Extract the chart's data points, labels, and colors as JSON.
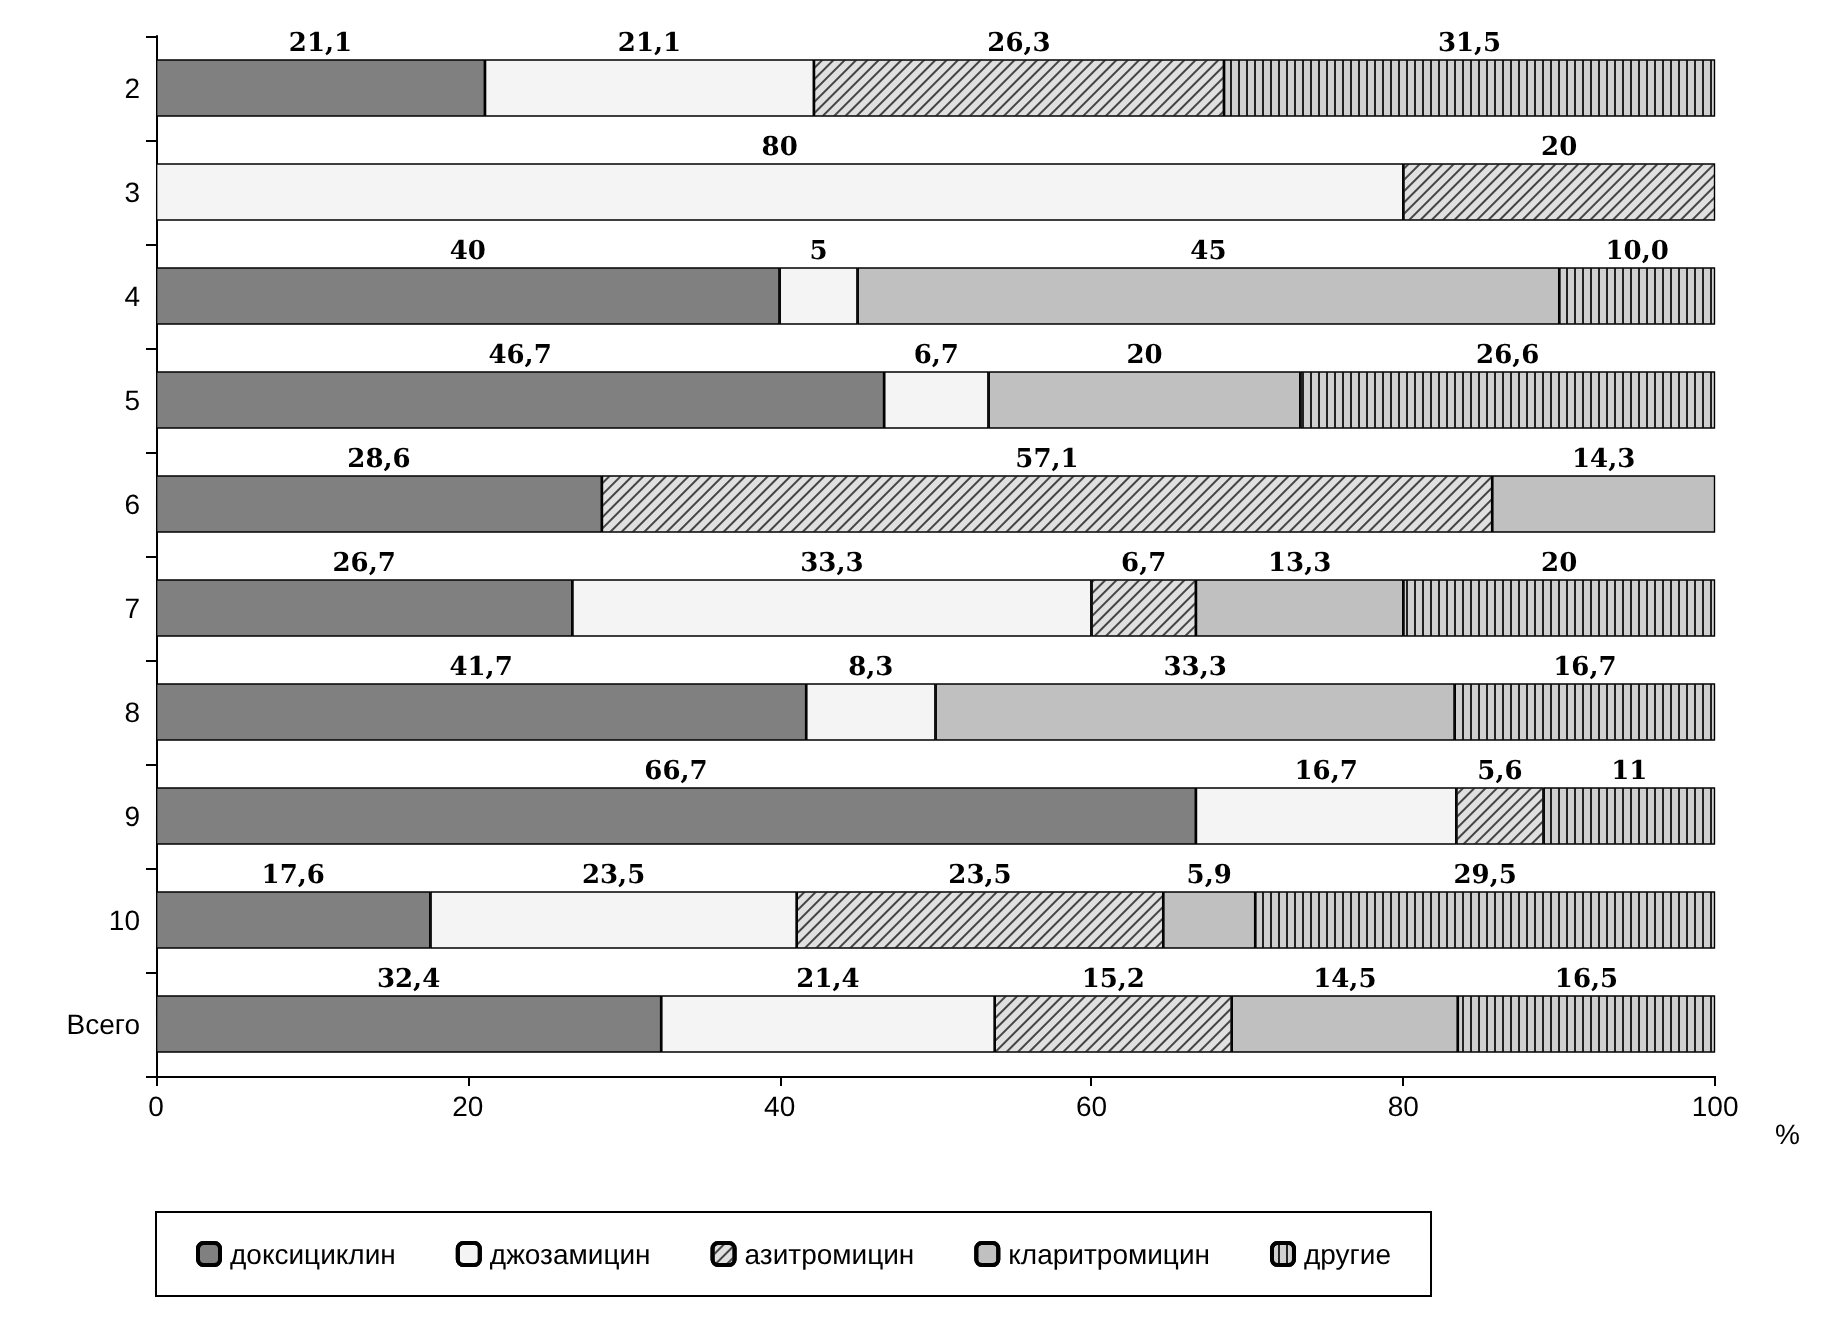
{
  "chart_data": {
    "type": "bar",
    "orientation": "horizontal",
    "stacked": true,
    "xlabel": "%",
    "categories": [
      "2",
      "3",
      "4",
      "5",
      "6",
      "7",
      "8",
      "9",
      "10",
      "Всего"
    ],
    "xlim": [
      0,
      100
    ],
    "xticks": [
      0,
      20,
      40,
      60,
      80,
      100
    ],
    "grid": false,
    "legend": "bottom",
    "series": [
      {
        "name": "доксициклин",
        "color": "#808080",
        "values": [
          21.1,
          null,
          40,
          46.7,
          28.6,
          26.7,
          41.7,
          66.7,
          17.6,
          32.4
        ],
        "value_labels": [
          "21,1",
          null,
          "40",
          "46,7",
          "28,6",
          "26,7",
          "41,7",
          "66,7",
          "17,6",
          "32,4"
        ]
      },
      {
        "name": "джозамицин",
        "color": "#f4f4f4",
        "values": [
          21.1,
          80,
          5,
          6.7,
          null,
          33.3,
          8.3,
          16.7,
          23.5,
          21.4
        ],
        "value_labels": [
          "21,1",
          "80",
          "5",
          "6,7",
          null,
          "33,3",
          "8,3",
          "16,7",
          "23,5",
          "21,4"
        ]
      },
      {
        "name": "азитромицин",
        "color": "#e0e0e0",
        "values": [
          26.3,
          20,
          null,
          null,
          57.1,
          6.7,
          null,
          5.6,
          23.5,
          15.2
        ],
        "value_labels": [
          "26,3",
          "20",
          null,
          null,
          "57,1",
          "6,7",
          null,
          "5,6",
          "23,5",
          "15,2"
        ]
      },
      {
        "name": "кларитромицин",
        "color": "#c0c0c0",
        "values": [
          null,
          null,
          45,
          20,
          14.3,
          13.3,
          33.3,
          null,
          5.9,
          14.5
        ],
        "value_labels": [
          null,
          null,
          "45",
          "20",
          "14,3",
          "13,3",
          "33,3",
          null,
          "5,9",
          "14,5"
        ]
      },
      {
        "name": "другие",
        "color": "#d0d0d0",
        "values": [
          31.5,
          null,
          10,
          26.6,
          null,
          20,
          16.7,
          11,
          29.5,
          16.5
        ],
        "value_labels": [
          "31,5",
          null,
          "10,0",
          "26,6",
          null,
          "20",
          "16,7",
          "11",
          "29,5",
          "16,5"
        ]
      }
    ]
  }
}
